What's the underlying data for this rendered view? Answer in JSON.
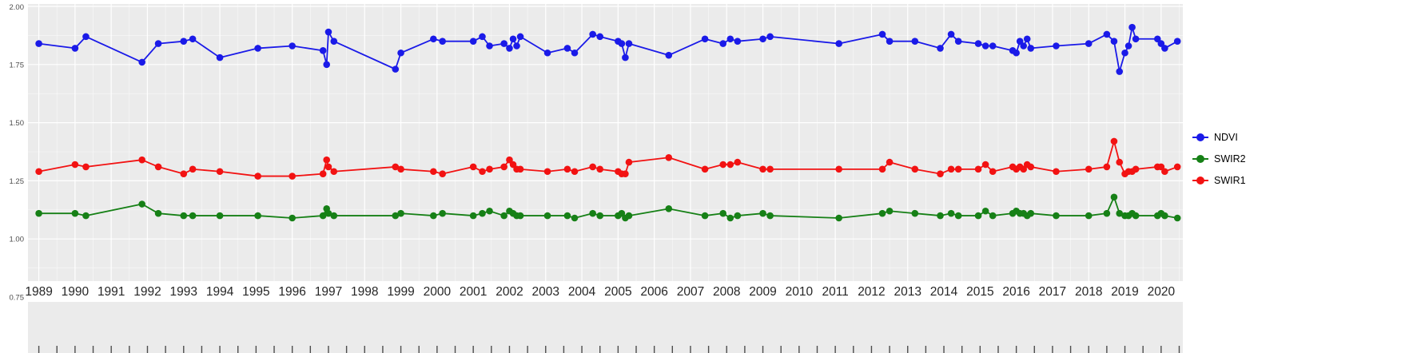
{
  "style": {
    "page_bg": "#FFFFFF",
    "panel_bg": "#EBEBEB",
    "grid_color": "#FFFFFF",
    "axis_band_bg": "#FFFFFF",
    "y_tick_text_color": "#4D4D4D",
    "x_tick_text_color": "#262626",
    "bottom_tick_color": "#4D4D4D"
  },
  "legend": {
    "items": [
      {
        "label": "NDVI"
      },
      {
        "label": "SWIR2"
      },
      {
        "label": "SWIR1"
      }
    ]
  },
  "chart_data": {
    "type": "line",
    "title": "",
    "xlabel": "",
    "ylabel": "",
    "grid": true,
    "legend_position": "right",
    "xlim": [
      1988.7,
      2020.6
    ],
    "ylim": [
      0.75,
      2.0
    ],
    "x_ticks": [
      1989,
      1990,
      1991,
      1992,
      1993,
      1994,
      1995,
      1996,
      1997,
      1998,
      1999,
      2000,
      2001,
      2002,
      2003,
      2004,
      2005,
      2006,
      2007,
      2008,
      2009,
      2010,
      2011,
      2012,
      2013,
      2014,
      2015,
      2016,
      2017,
      2018,
      2019,
      2020
    ],
    "y_ticks": [
      0.75,
      1.0,
      1.25,
      1.5,
      1.75,
      2.0
    ],
    "y_tick_labels": [
      "0.75",
      "1.00",
      "1.25",
      "1.50",
      "1.75",
      "2.00"
    ],
    "x": [
      1989.0,
      1990.0,
      1990.3,
      1991.85,
      1992.3,
      1993.0,
      1993.25,
      1994.0,
      1995.05,
      1996.0,
      1996.85,
      1996.95,
      1997.0,
      1997.15,
      1998.85,
      1999.0,
      1999.9,
      2000.15,
      2001.0,
      2001.25,
      2001.45,
      2001.85,
      2002.0,
      2002.1,
      2002.2,
      2002.3,
      2003.05,
      2003.6,
      2003.8,
      2004.3,
      2004.5,
      2005.0,
      2005.1,
      2005.2,
      2005.3,
      2006.4,
      2007.4,
      2007.9,
      2008.1,
      2008.3,
      2009.0,
      2009.2,
      2011.1,
      2012.3,
      2012.5,
      2013.2,
      2013.9,
      2014.2,
      2014.4,
      2014.95,
      2015.15,
      2015.35,
      2015.9,
      2016.0,
      2016.1,
      2016.2,
      2016.3,
      2016.4,
      2017.1,
      2018.0,
      2018.5,
      2018.7,
      2018.85,
      2019.0,
      2019.1,
      2019.2,
      2019.3,
      2019.9,
      2020.0,
      2020.1,
      2020.45
    ],
    "series": [
      {
        "name": "NDVI",
        "color": "#1A1AE8",
        "values": [
          1.84,
          1.82,
          1.87,
          1.76,
          1.84,
          1.85,
          1.86,
          1.78,
          1.82,
          1.83,
          1.81,
          1.75,
          1.89,
          1.85,
          1.73,
          1.8,
          1.86,
          1.85,
          1.85,
          1.87,
          1.83,
          1.84,
          1.82,
          1.86,
          1.83,
          1.87,
          1.8,
          1.82,
          1.8,
          1.88,
          1.87,
          1.85,
          1.84,
          1.78,
          1.84,
          1.79,
          1.86,
          1.84,
          1.86,
          1.85,
          1.86,
          1.87,
          1.84,
          1.88,
          1.85,
          1.85,
          1.82,
          1.88,
          1.85,
          1.84,
          1.83,
          1.83,
          1.81,
          1.8,
          1.85,
          1.83,
          1.86,
          1.82,
          1.83,
          1.84,
          1.88,
          1.85,
          1.72,
          1.8,
          1.83,
          1.91,
          1.86,
          1.86,
          1.84,
          1.82,
          1.85
        ]
      },
      {
        "name": "SWIR2",
        "color": "#168016",
        "values": [
          1.11,
          1.11,
          1.1,
          1.15,
          1.11,
          1.1,
          1.1,
          1.1,
          1.1,
          1.09,
          1.1,
          1.13,
          1.11,
          1.1,
          1.1,
          1.11,
          1.1,
          1.11,
          1.1,
          1.11,
          1.12,
          1.1,
          1.12,
          1.11,
          1.1,
          1.1,
          1.1,
          1.1,
          1.09,
          1.11,
          1.1,
          1.1,
          1.11,
          1.09,
          1.1,
          1.13,
          1.1,
          1.11,
          1.09,
          1.1,
          1.11,
          1.1,
          1.09,
          1.11,
          1.12,
          1.11,
          1.1,
          1.11,
          1.1,
          1.1,
          1.12,
          1.1,
          1.11,
          1.12,
          1.11,
          1.11,
          1.1,
          1.11,
          1.1,
          1.1,
          1.11,
          1.18,
          1.11,
          1.1,
          1.1,
          1.11,
          1.1,
          1.1,
          1.11,
          1.1,
          1.09
        ]
      },
      {
        "name": "SWIR1",
        "color": "#F21212",
        "values": [
          1.29,
          1.32,
          1.31,
          1.34,
          1.31,
          1.28,
          1.3,
          1.29,
          1.27,
          1.27,
          1.28,
          1.34,
          1.31,
          1.29,
          1.31,
          1.3,
          1.29,
          1.28,
          1.31,
          1.29,
          1.3,
          1.31,
          1.34,
          1.32,
          1.3,
          1.3,
          1.29,
          1.3,
          1.29,
          1.31,
          1.3,
          1.29,
          1.28,
          1.28,
          1.33,
          1.35,
          1.3,
          1.32,
          1.32,
          1.33,
          1.3,
          1.3,
          1.3,
          1.3,
          1.33,
          1.3,
          1.28,
          1.3,
          1.3,
          1.3,
          1.32,
          1.29,
          1.31,
          1.3,
          1.31,
          1.3,
          1.32,
          1.31,
          1.29,
          1.3,
          1.31,
          1.42,
          1.33,
          1.28,
          1.29,
          1.29,
          1.3,
          1.31,
          1.31,
          1.29,
          1.31
        ]
      }
    ]
  }
}
